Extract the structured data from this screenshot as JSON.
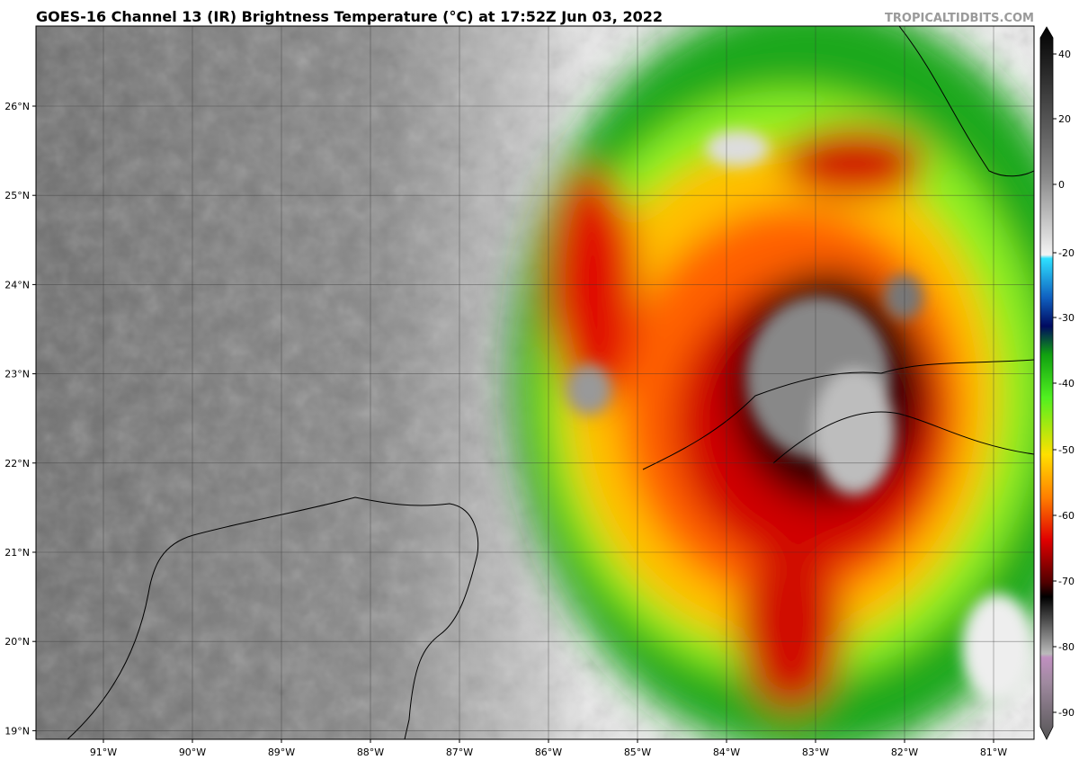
{
  "title": "GOES-16 Channel 13 (IR) Brightness Temperature (°C) at 17:52Z Jun 03, 2022",
  "credit": "TROPICALTIDBITS.COM",
  "map": {
    "lat_labels": [
      "26°N",
      "25°N",
      "24°N",
      "23°N",
      "22°N",
      "21°N",
      "20°N",
      "19°N"
    ],
    "lon_labels": [
      "91°W",
      "90°W",
      "89°W",
      "88°W",
      "87°W",
      "86°W",
      "85°W",
      "84°W",
      "83°W",
      "82°W",
      "81°W"
    ]
  },
  "colorbar": {
    "ticks": [
      40,
      20,
      0,
      -20,
      -30,
      -40,
      -50,
      -60,
      -70,
      -80,
      -90
    ]
  }
}
